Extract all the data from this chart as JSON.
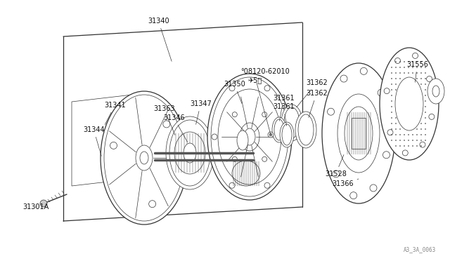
{
  "bg_color": "#ffffff",
  "line_color": "#333333",
  "text_color": "#111111",
  "watermark": "A3_3A_0063",
  "fs_label": 6.5,
  "lw_thin": 0.5,
  "lw_med": 0.9,
  "lw_thick": 1.2
}
